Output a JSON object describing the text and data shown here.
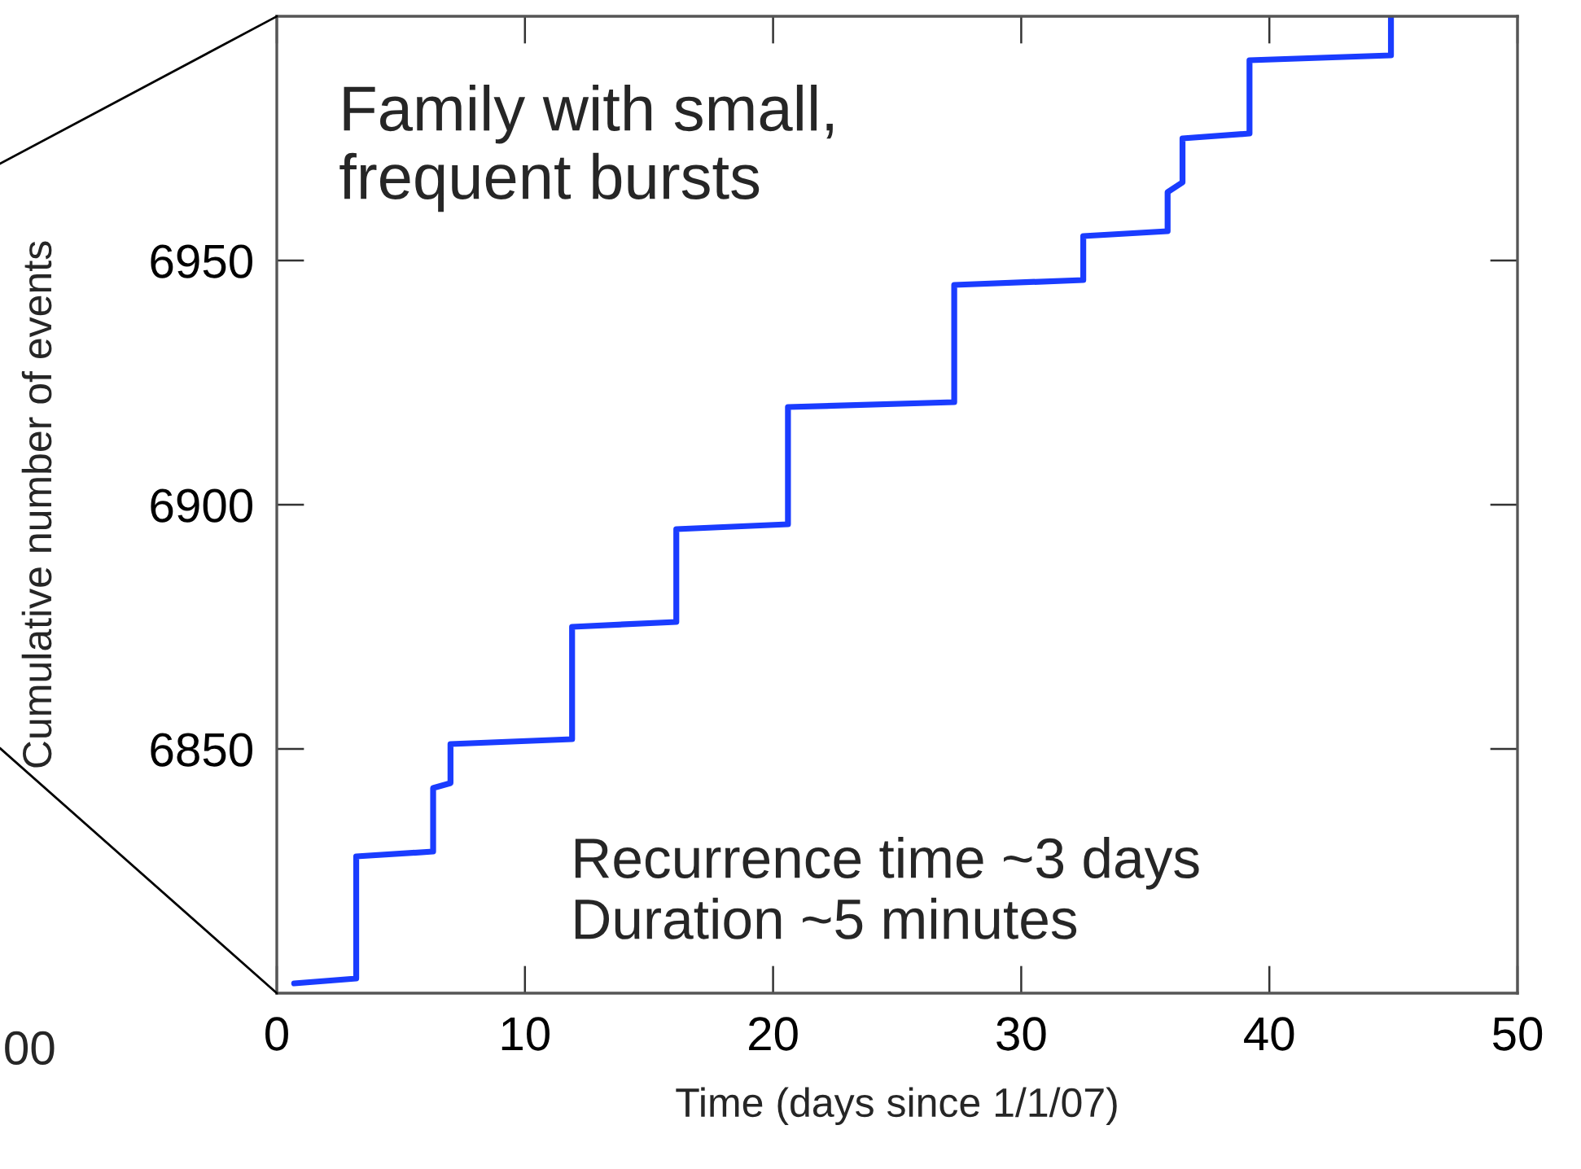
{
  "chart_data": {
    "type": "line",
    "xlabel": "Time (days since 1/1/07)",
    "ylabel": "Cumulative number of events",
    "series": [
      {
        "color": "#1a3cff",
        "x": [
          0.7,
          3.2,
          3.2,
          6.3,
          6.3,
          7.0,
          7.0,
          11.9,
          11.9,
          16.1,
          16.1,
          20.6,
          20.6,
          27.3,
          27.3,
          32.5,
          32.5,
          35.9,
          35.9,
          36.5,
          36.5,
          39.2,
          39.2,
          44.9,
          44.9
        ],
        "values": [
          6802,
          6803,
          6828,
          6829,
          6842,
          6843,
          6851,
          6852,
          6875,
          6876,
          6895,
          6896,
          6920,
          6921,
          6945,
          6946,
          6955,
          6956,
          6964,
          6966,
          6975,
          6976,
          6991,
          6992,
          7000
        ]
      }
    ],
    "xlim": [
      0,
      50
    ],
    "xticks": [
      0,
      10,
      20,
      30,
      40,
      50
    ],
    "ylim": [
      6800,
      7000
    ],
    "yticks": [
      6850,
      6900,
      6950
    ],
    "grid": false,
    "marker": "none",
    "line_style": "solid",
    "annotations": [
      "Family with small,\nfrequent bursts",
      "Recurrence time ~3 days\nDuration ~5 minutes",
      "00"
    ]
  }
}
